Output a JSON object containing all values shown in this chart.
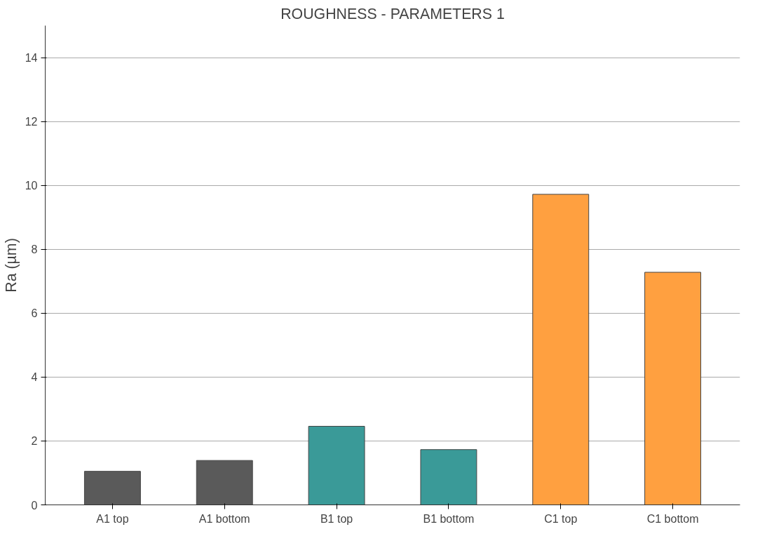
{
  "chart_data": {
    "type": "bar",
    "title": "ROUGHNESS - PARAMETERS 1",
    "ylabel": "Ra (µm)",
    "categories": [
      "A1 top",
      "A1 bottom",
      "B1 top",
      "B1 bottom",
      "C1 top",
      "C1 bottom"
    ],
    "values": [
      1.05,
      1.39,
      2.46,
      1.73,
      9.72,
      7.28
    ],
    "colors": [
      "#5a5a5a",
      "#5a5a5a",
      "#3a9a98",
      "#3a9a98",
      "#ffa040",
      "#ffa040"
    ],
    "ylim": [
      0,
      15
    ],
    "yticks": [
      0,
      2,
      4,
      6,
      8,
      10,
      12,
      14
    ],
    "grid": "y"
  }
}
